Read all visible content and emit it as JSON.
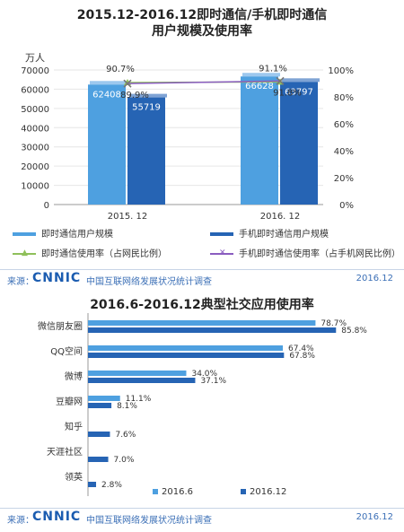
{
  "top": {
    "title_line1": "2015.12-2016.12即时通信/手机即时通信",
    "title_line2": "用户规模及使用率",
    "left_unit": "万人",
    "legend": [
      {
        "label": "即时通信用户规模",
        "color": "#4ea0e0",
        "kind": "bar"
      },
      {
        "label": "手机即时通信用户规模",
        "color": "#2664b4",
        "kind": "bar"
      },
      {
        "label": "即时通信使用率（占网民比例）",
        "color": "#8fc05a",
        "kind": "line",
        "marker": "▲"
      },
      {
        "label": "手机即时通信使用率（占手机网民比例）",
        "color": "#8a5cc0",
        "kind": "line",
        "marker": "✕"
      }
    ]
  },
  "bottom": {
    "title": "2016.6-2016.12典型社交应用使用率",
    "legend": [
      {
        "label": "2016.6",
        "color": "#4ea0e0"
      },
      {
        "label": "2016.12",
        "color": "#2664b4"
      }
    ]
  },
  "footer": {
    "source_label": "来源：",
    "logo": "CNNIC",
    "org": "中国互联网络发展状况统计调查",
    "date": "2016.12"
  },
  "chart_data": [
    {
      "type": "bar",
      "title": "2015.12-2016.12即时通信/手机即时通信 用户规模及使用率",
      "categories": [
        "2015. 12",
        "2016. 12"
      ],
      "series": [
        {
          "name": "即时通信用户规模",
          "values": [
            62408,
            66628
          ],
          "axis": "left"
        },
        {
          "name": "手机即时通信用户规模",
          "values": [
            55719,
            63797
          ],
          "axis": "left"
        },
        {
          "name": "即时通信使用率（占网民比例）",
          "values": [
            90.7,
            91.1
          ],
          "axis": "right",
          "type": "line"
        },
        {
          "name": "手机即时通信使用率（占手机网民比例）",
          "values": [
            89.9,
            91.8
          ],
          "axis": "right",
          "type": "line"
        }
      ],
      "left_axis": {
        "label": "万人",
        "ylim": [
          0,
          70000
        ],
        "ticks": [
          0,
          10000,
          20000,
          30000,
          40000,
          50000,
          60000,
          70000
        ]
      },
      "right_axis": {
        "ylim": [
          0,
          100
        ],
        "ticks": [
          "0%",
          "20%",
          "40%",
          "60%",
          "80%",
          "100%"
        ]
      },
      "value_labels": {
        "即时通信使用率（占网民比例）": [
          "90.7%",
          "91.1%"
        ],
        "手机即时通信使用率（占手机网民比例）": [
          "89.9%",
          "91.8%"
        ]
      },
      "legend_position": "bottom"
    },
    {
      "type": "bar",
      "orientation": "horizontal",
      "title": "2016.6-2016.12典型社交应用使用率",
      "categories": [
        "微信朋友圈",
        "QQ空间",
        "微博",
        "豆瓣网",
        "知乎",
        "天涯社区",
        "领英"
      ],
      "series": [
        {
          "name": "2016.6",
          "values": [
            78.7,
            67.4,
            34.0,
            11.1,
            null,
            null,
            null
          ],
          "labels": [
            "78.7%",
            "67.4%",
            "34.0%",
            "11.1%",
            "",
            "",
            ""
          ]
        },
        {
          "name": "2016.12",
          "values": [
            85.8,
            67.8,
            37.1,
            8.1,
            7.6,
            7.0,
            2.8
          ],
          "labels": [
            "85.8%",
            "67.8%",
            "37.1%",
            "8.1%",
            "7.6%",
            "7.0%",
            "2.8%"
          ]
        }
      ],
      "legend_position": "bottom"
    }
  ]
}
